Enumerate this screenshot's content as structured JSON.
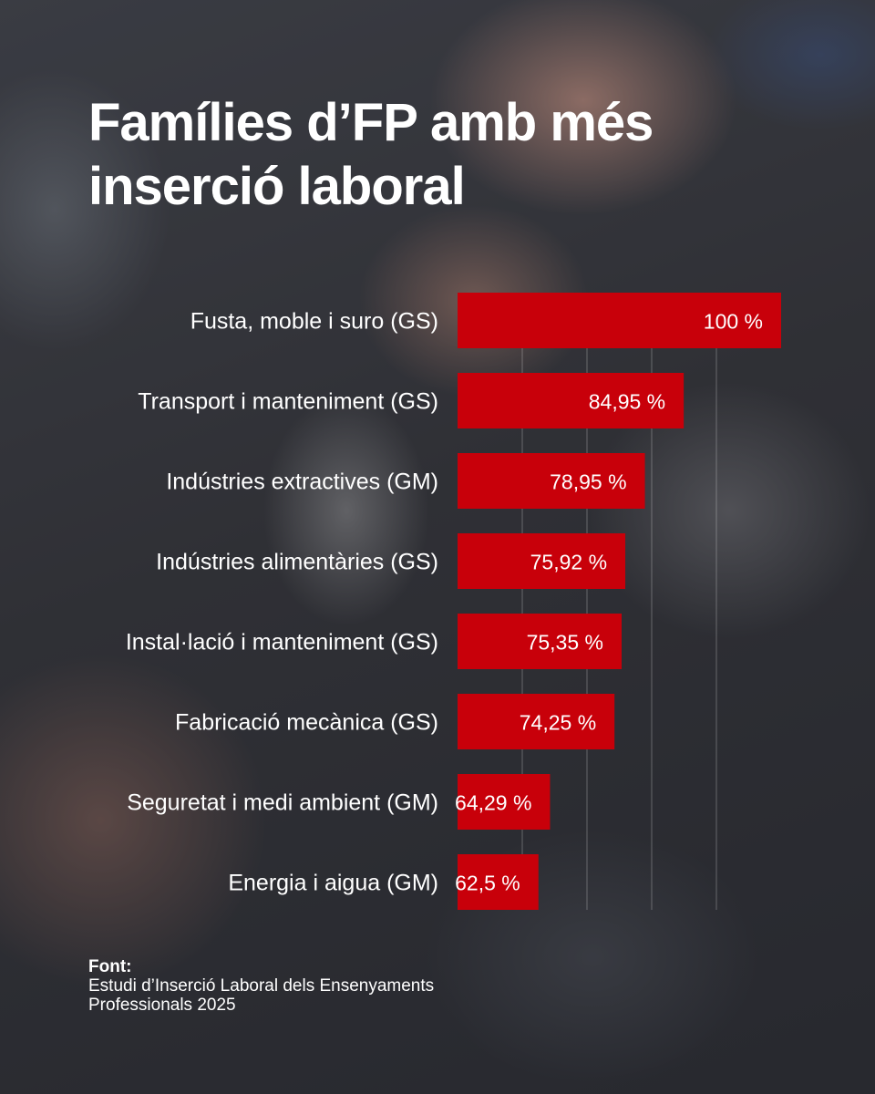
{
  "title": "Famílies d’FP amb més inserció laboral",
  "source": {
    "label": "Font:",
    "text": "Estudi d’Inserció Laboral dels Ensenyaments Professionals 2025"
  },
  "colors": {
    "bar": "#c8000a",
    "text": "#ffffff"
  },
  "chart_data": {
    "type": "bar",
    "orientation": "horizontal",
    "categories": [
      "Fusta, moble i suro (GS)",
      "Transport i manteniment (GS)",
      "Indústries extractives (GM)",
      "Indústries alimentàries (GS)",
      "Instal·lació i manteniment (GS)",
      "Fabricació mecànica (GS)",
      "Seguretat i medi ambient (GM)",
      "Energia i aigua (GM)"
    ],
    "values": [
      100,
      84.95,
      78.95,
      75.92,
      75.35,
      74.25,
      64.29,
      62.5
    ],
    "value_labels": [
      "100 %",
      "84,95 %",
      "78,95 %",
      "75,92 %",
      "75,35 %",
      "74,25 %",
      "64,29 %",
      "62,5 %"
    ],
    "xlim": [
      50,
      100
    ],
    "grid": true,
    "legend": "none"
  }
}
